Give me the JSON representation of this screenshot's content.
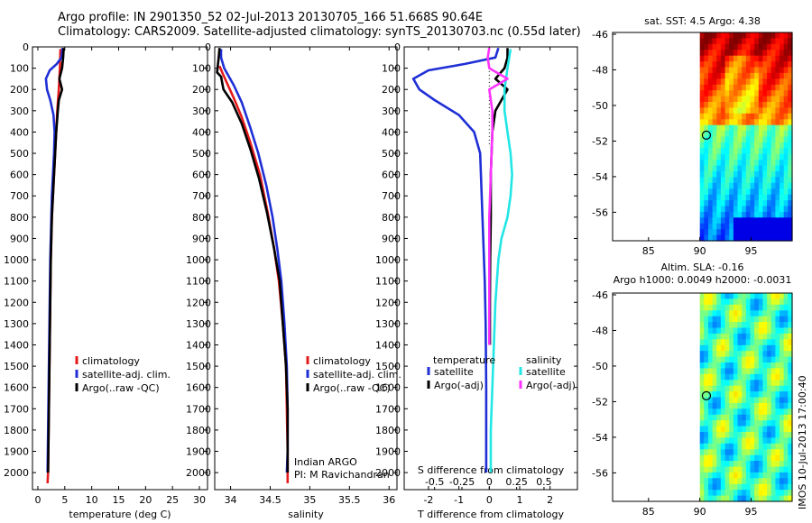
{
  "header": {
    "line1": "Argo profile: IN 2901350_52 02-Jul-2013 20130705_166 51.668S 90.64E",
    "line2": "Climatology: CARS2009. Satellite-adjusted climatology: synTS_20130703.nc (0.55d later)"
  },
  "colors": {
    "climatology": "#e41a1c",
    "satellite": "#1f2fd6",
    "argo": "#000000",
    "sat_salinity": "#22e6e6",
    "argo_salinity_diff": "#ff33ff"
  },
  "chart_data": [
    {
      "id": "temperature",
      "type": "line",
      "xlabel": "temperature (deg C)",
      "ylabel": "",
      "xlim": [
        -1,
        31.5
      ],
      "ylim": [
        2080,
        0
      ],
      "xticks": [
        0,
        5,
        10,
        15,
        20,
        25,
        30
      ],
      "yticks": [
        0,
        100,
        200,
        300,
        400,
        500,
        600,
        700,
        800,
        900,
        1000,
        1100,
        1200,
        1300,
        1400,
        1500,
        1600,
        1700,
        1800,
        1900,
        2000
      ],
      "legend": [
        "climatology",
        "satellite-adj. clim.",
        "Argo(..raw -QC)"
      ],
      "series": [
        {
          "name": "climatology",
          "color_key": "climatology",
          "points": [
            [
              4.2,
              10
            ],
            [
              4.1,
              100
            ],
            [
              3.9,
              200
            ],
            [
              3.6,
              300
            ],
            [
              3.4,
              400
            ],
            [
              3.2,
              500
            ],
            [
              3.0,
              600
            ],
            [
              2.8,
              700
            ],
            [
              2.6,
              800
            ],
            [
              2.5,
              900
            ],
            [
              2.4,
              1000
            ],
            [
              2.3,
              1200
            ],
            [
              2.2,
              1400
            ],
            [
              2.1,
              1600
            ],
            [
              2.0,
              1800
            ],
            [
              1.9,
              2000
            ],
            [
              1.8,
              2050
            ]
          ]
        },
        {
          "name": "satellite",
          "color_key": "satellite",
          "points": [
            [
              4.6,
              5
            ],
            [
              4.4,
              50
            ],
            [
              3.5,
              80
            ],
            [
              2.2,
              110
            ],
            [
              1.5,
              150
            ],
            [
              1.7,
              200
            ],
            [
              2.3,
              250
            ],
            [
              2.9,
              320
            ],
            [
              3.1,
              400
            ],
            [
              3.0,
              500
            ],
            [
              2.8,
              600
            ],
            [
              2.6,
              700
            ],
            [
              2.5,
              800
            ],
            [
              2.4,
              900
            ],
            [
              2.3,
              1000
            ],
            [
              2.2,
              1200
            ],
            [
              2.1,
              1400
            ],
            [
              2.0,
              1600
            ],
            [
              1.9,
              1800
            ],
            [
              1.8,
              2000
            ]
          ]
        },
        {
          "name": "argo",
          "color_key": "argo",
          "points": [
            [
              4.8,
              5
            ],
            [
              4.7,
              50
            ],
            [
              4.5,
              100
            ],
            [
              4.0,
              150
            ],
            [
              4.5,
              200
            ],
            [
              3.9,
              250
            ],
            [
              3.7,
              300
            ],
            [
              3.4,
              400
            ],
            [
              3.2,
              500
            ],
            [
              3.0,
              600
            ],
            [
              2.8,
              700
            ],
            [
              2.6,
              800
            ],
            [
              2.5,
              900
            ],
            [
              2.4,
              1000
            ],
            [
              2.3,
              1200
            ],
            [
              2.2,
              1400
            ],
            [
              2.1,
              1600
            ],
            [
              2.0,
              1800
            ],
            [
              1.9,
              2000
            ]
          ]
        }
      ]
    },
    {
      "id": "salinity",
      "type": "line",
      "xlabel": "salinity",
      "ylabel": "",
      "xlim": [
        33.8,
        36.1
      ],
      "ylim": [
        2080,
        0
      ],
      "xticks": [
        34,
        34.5,
        35,
        35.5,
        36
      ],
      "legend": [
        "climatology",
        "satellite-adj. clim.",
        "Argo(..raw -QC)"
      ],
      "annotations": [
        "Indian ARGO",
        "PI: M Ravichandran"
      ],
      "series": [
        {
          "name": "climatology",
          "color_key": "climatology",
          "points": [
            [
              33.86,
              90
            ],
            [
              33.9,
              125
            ],
            [
              33.96,
              175
            ],
            [
              34.04,
              240
            ],
            [
              34.14,
              330
            ],
            [
              34.25,
              450
            ],
            [
              34.37,
              600
            ],
            [
              34.47,
              780
            ],
            [
              34.55,
              950
            ],
            [
              34.61,
              1100
            ],
            [
              34.66,
              1300
            ],
            [
              34.7,
              1500
            ],
            [
              34.71,
              1700
            ],
            [
              34.72,
              1900
            ],
            [
              34.72,
              2050
            ]
          ]
        },
        {
          "name": "satellite",
          "color_key": "satellite",
          "points": [
            [
              33.88,
              10
            ],
            [
              33.88,
              50
            ],
            [
              33.92,
              100
            ],
            [
              34.04,
              180
            ],
            [
              34.14,
              260
            ],
            [
              34.25,
              380
            ],
            [
              34.35,
              500
            ],
            [
              34.45,
              650
            ],
            [
              34.53,
              800
            ],
            [
              34.59,
              950
            ],
            [
              34.64,
              1100
            ],
            [
              34.68,
              1300
            ],
            [
              34.71,
              1500
            ],
            [
              34.72,
              1700
            ],
            [
              34.72,
              1900
            ],
            [
              34.71,
              2000
            ]
          ]
        },
        {
          "name": "argo",
          "color_key": "argo",
          "points": [
            [
              33.86,
              5
            ],
            [
              33.85,
              50
            ],
            [
              33.83,
              120
            ],
            [
              33.88,
              140
            ],
            [
              33.91,
              200
            ],
            [
              34.02,
              260
            ],
            [
              34.14,
              360
            ],
            [
              34.25,
              480
            ],
            [
              34.36,
              620
            ],
            [
              34.46,
              780
            ],
            [
              34.55,
              950
            ],
            [
              34.62,
              1100
            ],
            [
              34.66,
              1300
            ],
            [
              34.7,
              1500
            ],
            [
              34.72,
              1700
            ],
            [
              34.72,
              1900
            ],
            [
              34.72,
              2000
            ]
          ]
        }
      ]
    },
    {
      "id": "difference",
      "type": "line",
      "xlabel": "T difference from climatology",
      "x2label": "S difference from climatology",
      "xlim": [
        -2.8,
        2.9
      ],
      "ylim": [
        2080,
        0
      ],
      "xticks": [
        -2,
        -1,
        0,
        1,
        2
      ],
      "xtick_labels": [
        "-2",
        "-1",
        "0",
        "1",
        "2"
      ],
      "x2ticks": [
        -1.8,
        -0.9,
        0,
        0.9,
        1.8
      ],
      "x2tick_labels": [
        "-0.5",
        "-0.25",
        "0",
        "0.25",
        "0.5"
      ],
      "legend_temperature": {
        "title": "temperature",
        "satellite": "satellite",
        "argo": "Argo(-adj)"
      },
      "legend_salinity": {
        "title": "salinity",
        "satellite": "satellite",
        "argo": "Argo(-adj)"
      },
      "series": [
        {
          "name": "T satellite",
          "color_key": "satellite",
          "points": [
            [
              0.3,
              5
            ],
            [
              0.2,
              50
            ],
            [
              -0.8,
              80
            ],
            [
              -2.0,
              110
            ],
            [
              -2.5,
              150
            ],
            [
              -2.3,
              200
            ],
            [
              -1.8,
              250
            ],
            [
              -1.0,
              320
            ],
            [
              -0.5,
              400
            ],
            [
              -0.3,
              500
            ],
            [
              -0.25,
              700
            ],
            [
              -0.2,
              900
            ],
            [
              -0.15,
              1100
            ],
            [
              -0.12,
              1300
            ],
            [
              -0.1,
              1600
            ],
            [
              -0.1,
              1800
            ],
            [
              -0.1,
              2000
            ]
          ]
        },
        {
          "name": "T argo",
          "color_key": "argo",
          "points": [
            [
              0.6,
              5
            ],
            [
              0.6,
              50
            ],
            [
              0.5,
              100
            ],
            [
              0.2,
              150
            ],
            [
              0.6,
              200
            ],
            [
              0.4,
              250
            ],
            [
              0.2,
              300
            ],
            [
              0.1,
              400
            ],
            [
              0.05,
              600
            ],
            [
              0.05,
              800
            ],
            [
              0.03,
              1000
            ],
            [
              0.02,
              1200
            ],
            [
              0.02,
              1400
            ]
          ]
        },
        {
          "name": "S satellite",
          "color_key": "sat_salinity",
          "points": [
            [
              0.7,
              10
            ],
            [
              0.6,
              100
            ],
            [
              0.5,
              200
            ],
            [
              0.5,
              300
            ],
            [
              0.6,
              400
            ],
            [
              0.7,
              500
            ],
            [
              0.75,
              600
            ],
            [
              0.7,
              700
            ],
            [
              0.6,
              800
            ],
            [
              0.4,
              900
            ],
            [
              0.3,
              1000
            ],
            [
              0.2,
              1200
            ],
            [
              0.15,
              1400
            ],
            [
              0.1,
              1600
            ],
            [
              0.05,
              1800
            ],
            [
              0.05,
              2000
            ]
          ]
        },
        {
          "name": "S argo",
          "color_key": "argo_salinity_diff",
          "points": [
            [
              0.0,
              5
            ],
            [
              -0.05,
              50
            ],
            [
              0.0,
              100
            ],
            [
              0.6,
              150
            ],
            [
              0.0,
              200
            ],
            [
              0.1,
              300
            ],
            [
              0.1,
              400
            ],
            [
              0.05,
              600
            ],
            [
              0.0,
              800
            ],
            [
              0.0,
              1000
            ],
            [
              0.0,
              1200
            ],
            [
              0.0,
              1400
            ]
          ]
        }
      ]
    },
    {
      "id": "map_sst",
      "type": "heatmap",
      "title": "sat. SST: 4.5 Argo: 4.38",
      "xlim": [
        81.5,
        99
      ],
      "ylim": [
        -57.6,
        -45.9
      ],
      "xticks": [
        85,
        90,
        95
      ],
      "yticks": [
        -46,
        -48,
        -50,
        -52,
        -54,
        -56
      ],
      "marker": [
        90.64,
        -51.668
      ],
      "data_extent": [
        90,
        99
      ]
    },
    {
      "id": "map_sla",
      "type": "heatmap",
      "title": "Altim. SLA: -0.16",
      "subtitle": "Argo h1000: 0.0049 h2000: -0.0031",
      "xlim": [
        81.5,
        99
      ],
      "ylim": [
        -57.6,
        -45.9
      ],
      "xticks": [
        85,
        90,
        95
      ],
      "yticks": [
        -46,
        -48,
        -50,
        -52,
        -54,
        -56
      ],
      "marker": [
        90.64,
        -51.668
      ],
      "data_extent": [
        90,
        99
      ]
    }
  ],
  "watermark": "IMOS 10-Jul-2013 17:00:40"
}
